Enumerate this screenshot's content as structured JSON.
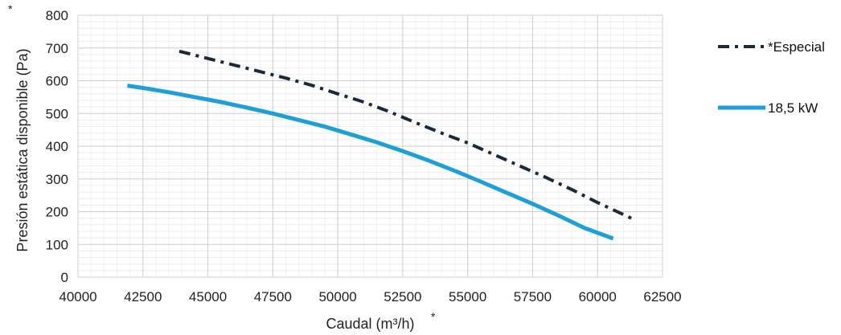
{
  "chart_data": {
    "type": "line",
    "title": "",
    "xlabel": "Caudal (m³/h)",
    "ylabel": "Presión estática disponible (Pa)",
    "xlabel_marker": "*",
    "ylabel_marker": "*",
    "xlim": [
      40000,
      62500
    ],
    "ylim": [
      0,
      800
    ],
    "x_ticks": [
      "40000",
      "42500",
      "45000",
      "47500",
      "50000",
      "52500",
      "55000",
      "57500",
      "60000",
      "62500"
    ],
    "y_ticks": [
      "0",
      "100",
      "200",
      "300",
      "400",
      "500",
      "600",
      "700",
      "800"
    ],
    "grid": true,
    "legend_position": "right",
    "series": [
      {
        "name": "*Especial",
        "style": "dash-dot",
        "color": "#1b2a3a",
        "points": [
          [
            43900,
            690
          ],
          [
            45000,
            668
          ],
          [
            46000,
            648
          ],
          [
            47000,
            628
          ],
          [
            48000,
            608
          ],
          [
            49000,
            586
          ],
          [
            50000,
            560
          ],
          [
            51000,
            535
          ],
          [
            52000,
            505
          ],
          [
            53000,
            472
          ],
          [
            54000,
            440
          ],
          [
            55000,
            410
          ],
          [
            56000,
            375
          ],
          [
            57000,
            340
          ],
          [
            58000,
            305
          ],
          [
            59000,
            268
          ],
          [
            60000,
            228
          ],
          [
            61300,
            180
          ]
        ]
      },
      {
        "name": "18,5 kW",
        "style": "solid",
        "color": "#1e9fd8",
        "points": [
          [
            41900,
            585
          ],
          [
            42500,
            578
          ],
          [
            43500,
            565
          ],
          [
            44500,
            550
          ],
          [
            45500,
            535
          ],
          [
            46500,
            518
          ],
          [
            47500,
            500
          ],
          [
            48500,
            480
          ],
          [
            49500,
            460
          ],
          [
            50500,
            436
          ],
          [
            51500,
            412
          ],
          [
            52500,
            385
          ],
          [
            53500,
            356
          ],
          [
            54500,
            325
          ],
          [
            55500,
            292
          ],
          [
            56500,
            258
          ],
          [
            57500,
            224
          ],
          [
            58500,
            188
          ],
          [
            59500,
            150
          ],
          [
            60600,
            118
          ]
        ]
      }
    ]
  }
}
